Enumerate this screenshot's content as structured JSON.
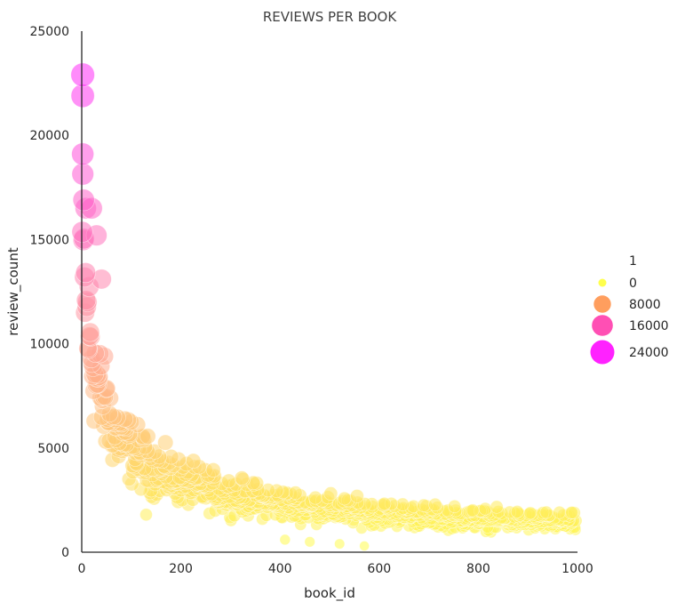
{
  "chart_data": {
    "type": "scatter",
    "title": "REVIEWS PER BOOK",
    "xlabel": "book_id",
    "ylabel": "review_count",
    "xlim": [
      0,
      1000
    ],
    "ylim": [
      0,
      25000
    ],
    "xticks": [
      0,
      200,
      400,
      600,
      800,
      1000
    ],
    "yticks": [
      0,
      5000,
      10000,
      15000,
      20000,
      25000
    ],
    "grid": false,
    "colormap": "spring_r",
    "size_and_hue_variable": "review_count",
    "legend": {
      "placement": "right",
      "title": "1",
      "entries": [
        {
          "label": "0",
          "value": 0,
          "color": "#ffff4d"
        },
        {
          "label": "8000",
          "value": 8000,
          "color": "#ff9e5e"
        },
        {
          "label": "16000",
          "value": 16000,
          "color": "#ff4fb4"
        },
        {
          "label": "24000",
          "value": 24000,
          "color": "#ff22ff"
        }
      ]
    },
    "trend": {
      "description": "review counts decay roughly as a power law with book_id",
      "approx_model": "review_count ≈ 15500·(1+book_id/15)^-0.57"
    },
    "highlight_points": [
      {
        "x": 2,
        "y": 22900
      },
      {
        "x": 2,
        "y": 21900
      },
      {
        "x": 2,
        "y": 19100
      },
      {
        "x": 4,
        "y": 16900
      },
      {
        "x": 8,
        "y": 16500
      },
      {
        "x": 20,
        "y": 16500
      },
      {
        "x": 30,
        "y": 15200
      },
      {
        "x": 40,
        "y": 13100
      },
      {
        "x": 130,
        "y": 1800
      },
      {
        "x": 410,
        "y": 600
      },
      {
        "x": 460,
        "y": 500
      },
      {
        "x": 520,
        "y": 400
      },
      {
        "x": 570,
        "y": 300
      }
    ]
  }
}
